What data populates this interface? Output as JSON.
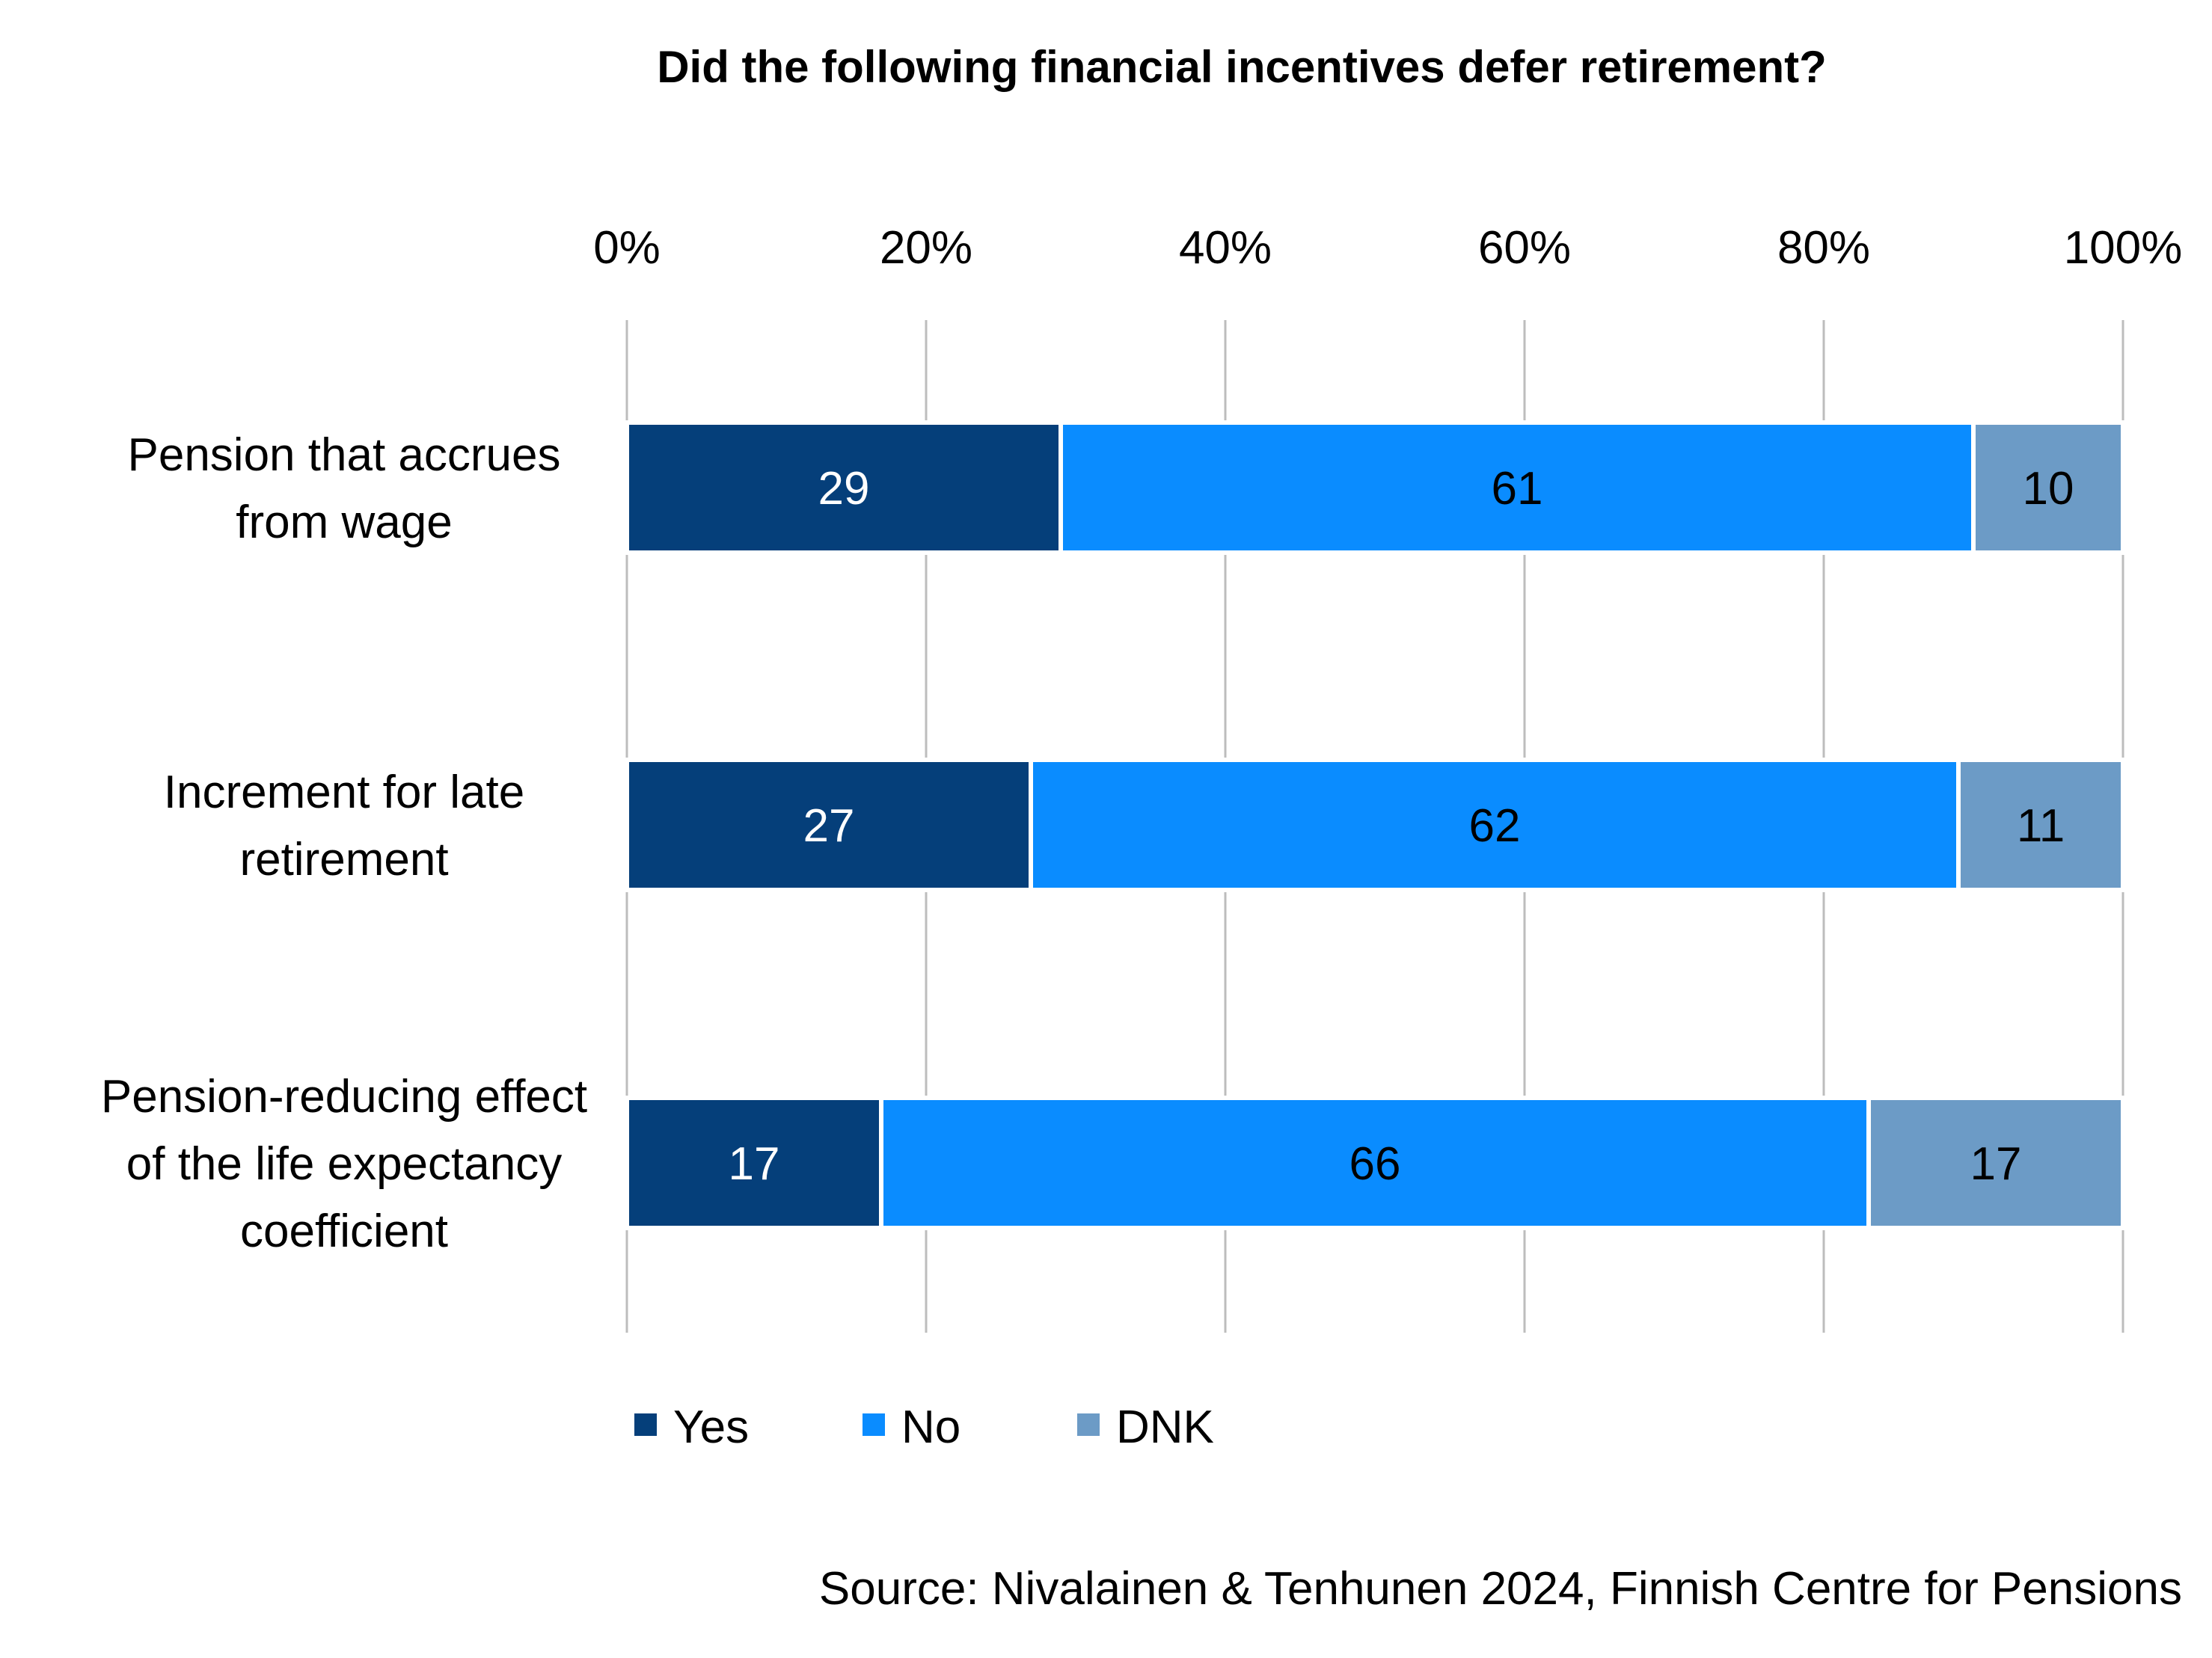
{
  "chart_data": {
    "type": "bar",
    "orientation": "horizontal",
    "stacked": true,
    "title": "Did the following financial incentives defer retirement?",
    "categories": [
      [
        "Pension that accrues",
        "from wage"
      ],
      [
        "Increment for late",
        "retirement"
      ],
      [
        "Pension-reducing effect",
        "of the life expectancy",
        "coefficient"
      ]
    ],
    "series": [
      {
        "name": "Yes",
        "values": [
          29,
          27,
          17
        ],
        "color": "#053f7a",
        "label_color": "#ffffff"
      },
      {
        "name": "No",
        "values": [
          61,
          62,
          66
        ],
        "color": "#0a8cff",
        "label_color": "#000000"
      },
      {
        "name": "DNK",
        "values": [
          10,
          11,
          17
        ],
        "color": "#6c9bc6",
        "label_color": "#000000"
      }
    ],
    "xlim": [
      0,
      100
    ],
    "x_ticks": [
      "0%",
      "20%",
      "40%",
      "60%",
      "80%",
      "100%"
    ],
    "x_axis_position": "top",
    "grid": true,
    "legend_position": "bottom-left",
    "source": "Source: Nivalainen & Tenhunen 2024, Finnish Centre for Pensions"
  }
}
